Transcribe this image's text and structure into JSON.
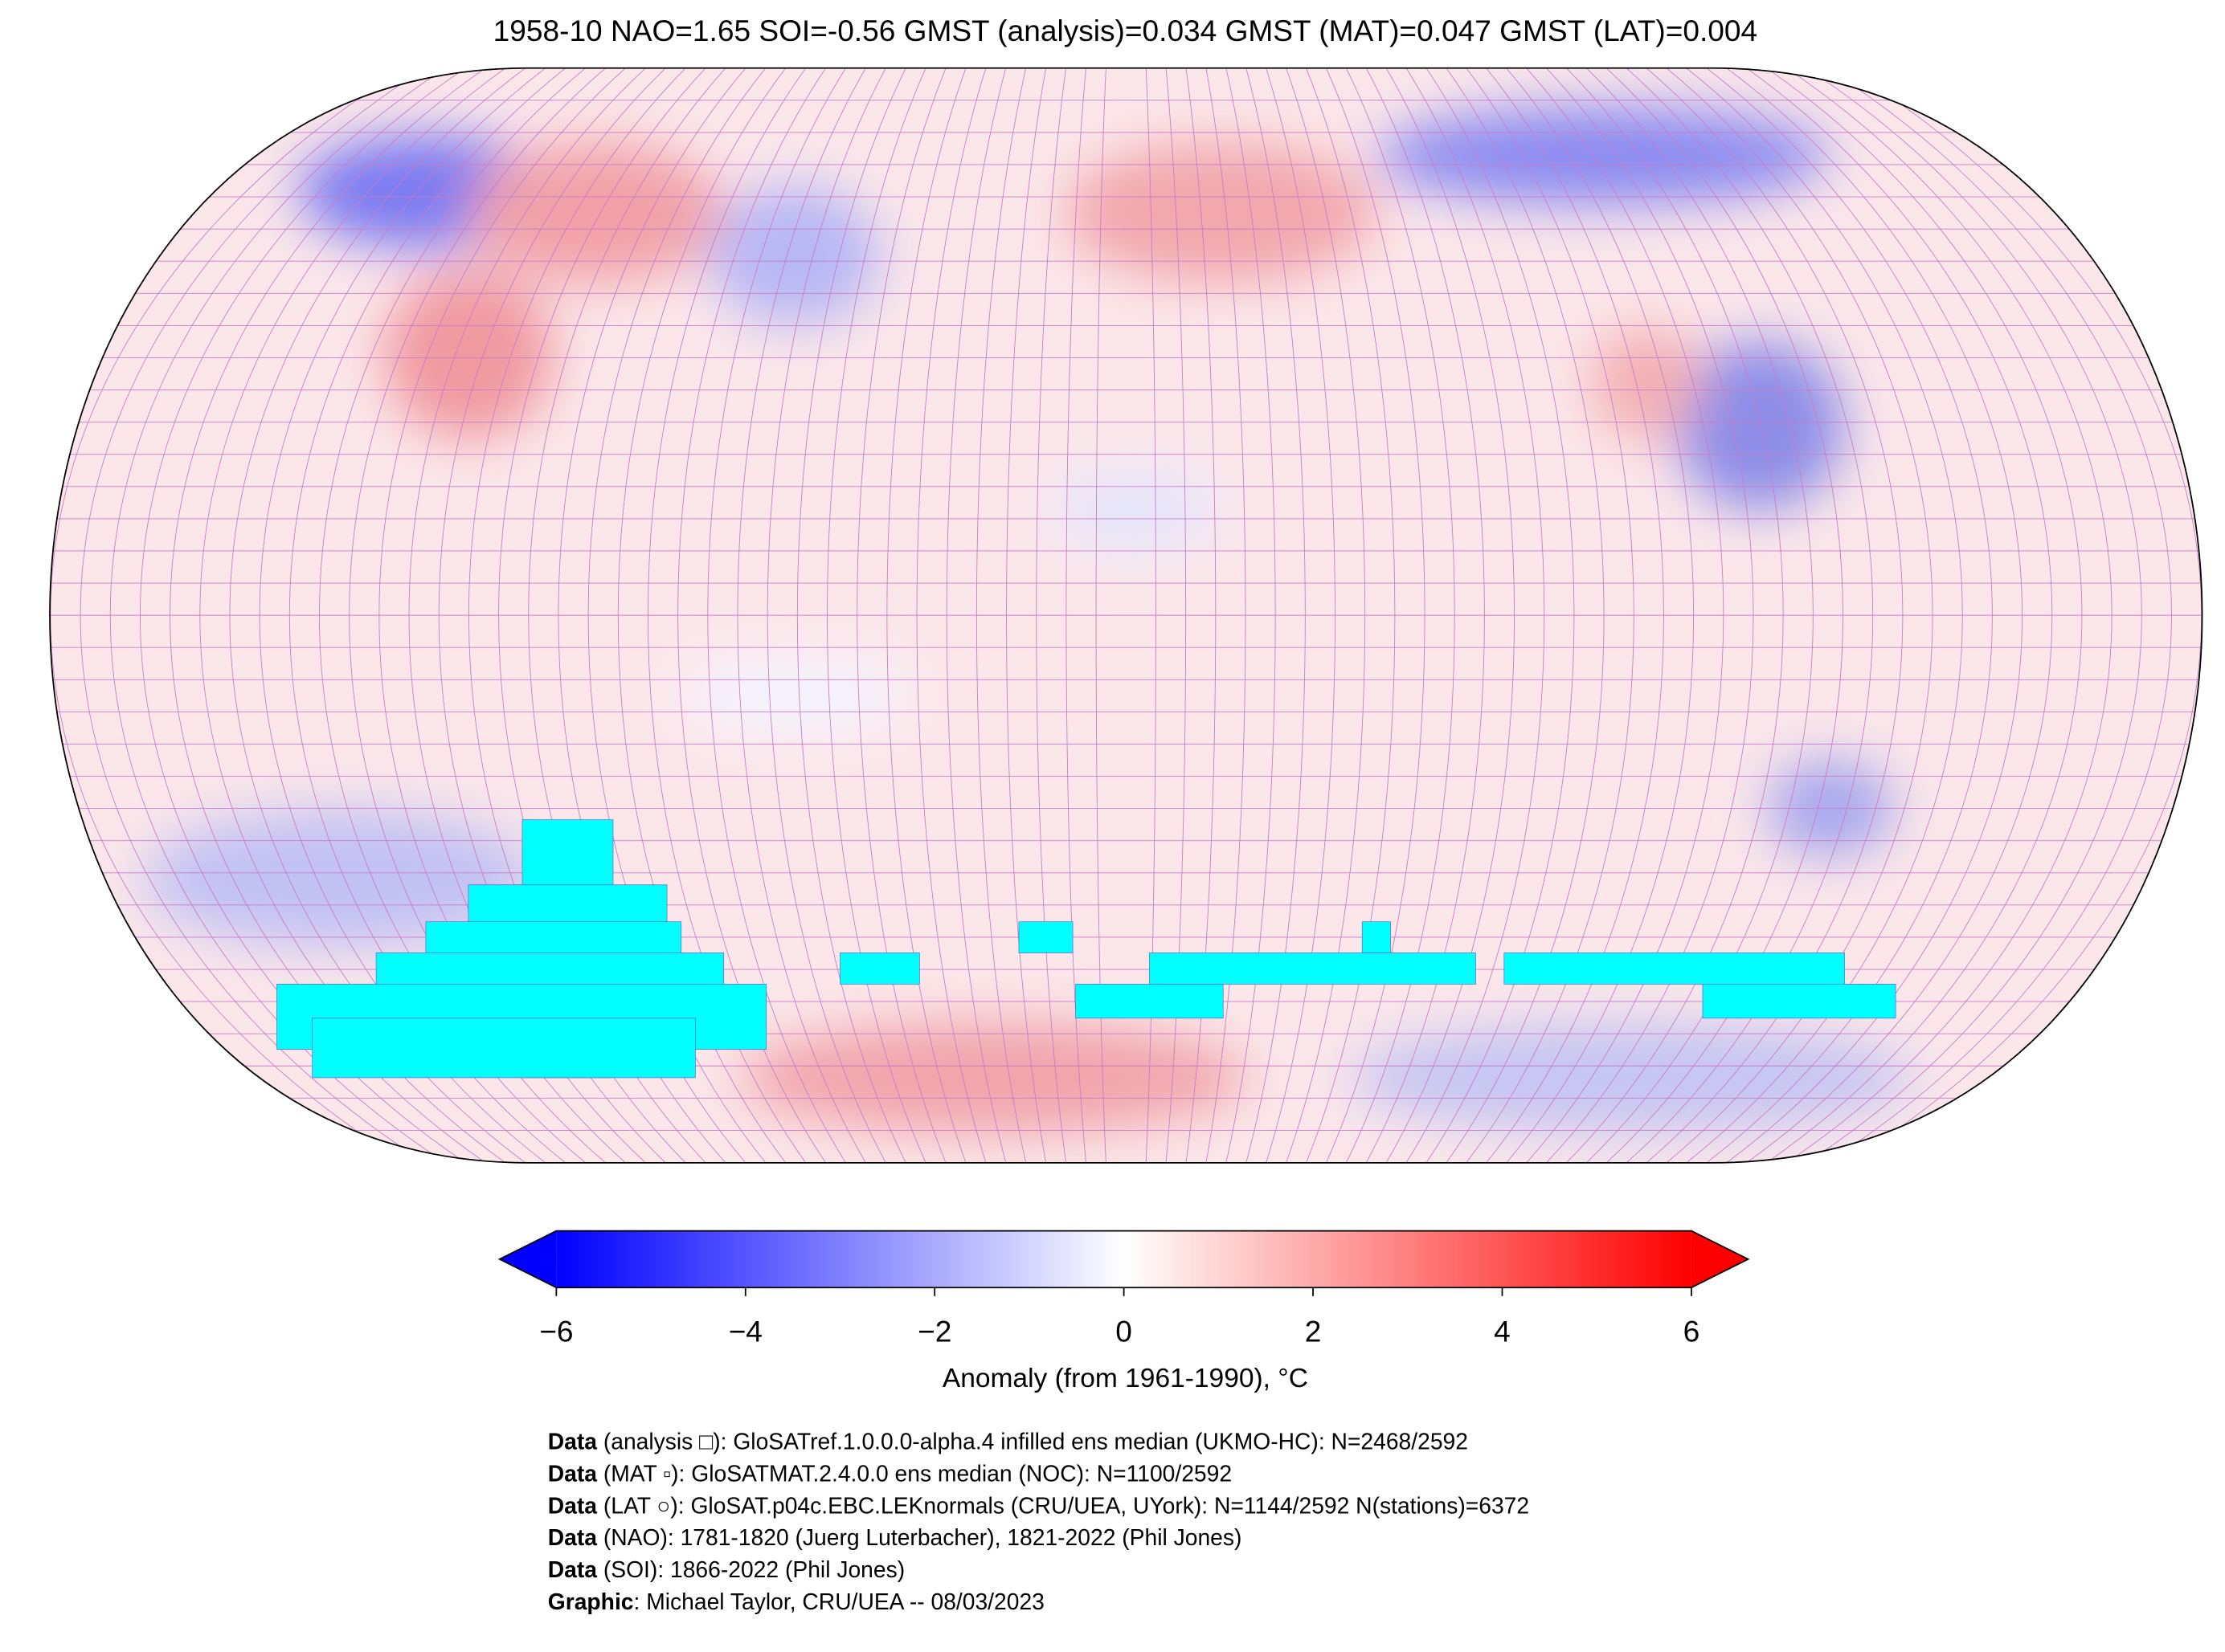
{
  "title": "1958-10 NAO=1.65 SOI=-0.56 GMST (analysis)=0.034 GMST (MAT)=0.047 GMST (LAT)=0.004",
  "colorbar": {
    "label": "Anomaly (from 1961-1990), °C",
    "lim": [
      -6,
      6
    ],
    "ticks": [
      {
        "value": -6,
        "label": "−6"
      },
      {
        "value": -4,
        "label": "−4"
      },
      {
        "value": -2,
        "label": "−2"
      },
      0,
      2,
      4,
      6
    ],
    "low_color": "#0000ff",
    "mid_color": "#ffffff",
    "high_color": "#ff0000"
  },
  "credits": [
    {
      "bold": "Data",
      "text": " (analysis □): GloSATref.1.0.0.0-alpha.4 infilled ens median (UKMO-HC): N=2468/2592"
    },
    {
      "bold": "Data",
      "text": " (MAT ▫): GloSATMAT.2.4.0.0 ens median (NOC): N=1100/2592"
    },
    {
      "bold": "Data",
      "text": " (LAT ○): GloSAT.p04c.EBC.LEKnormals (CRU/UEA, UYork): N=1144/2592 N(stations)=6372"
    },
    {
      "bold": "Data",
      "text": " (NAO): 1781-1820 (Juerg Luterbacher), 1821-2022 (Phil Jones)"
    },
    {
      "bold": "Data",
      "text": " (SOI): 1866-2022 (Phil Jones)"
    },
    {
      "bold": "Graphic",
      "text": ": Michael Taylor, CRU/UEA -- 08/03/2023"
    }
  ]
}
